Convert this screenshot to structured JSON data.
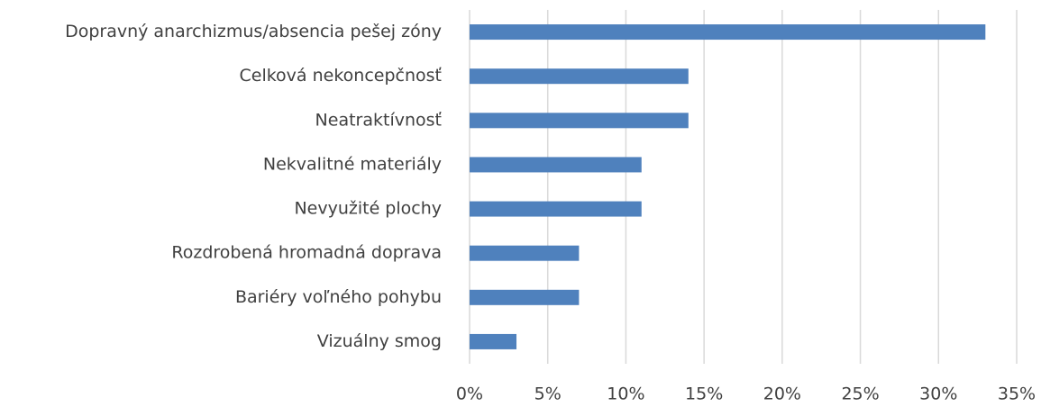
{
  "chart_data": {
    "type": "bar",
    "orientation": "horizontal",
    "categories": [
      "Dopravný anarchizmus/absencia pešej zóny",
      "Celková nekoncepčnosť",
      "Neatraktívnosť",
      "Nekvalitné materiály",
      "Nevyužité plochy",
      "Rozdrobená hromadná doprava",
      "Bariéry voľného pohybu",
      "Vizuálny smog"
    ],
    "values": [
      33,
      14,
      14,
      11,
      11,
      7,
      7,
      3
    ],
    "color": "#4f81bd",
    "xlim": [
      0,
      35
    ],
    "xticks": [
      {
        "value": 0,
        "label": "0%"
      },
      {
        "value": 5,
        "label": "5%"
      },
      {
        "value": 10,
        "label": "10%"
      },
      {
        "value": 15,
        "label": "15%"
      },
      {
        "value": 20,
        "label": "20%"
      },
      {
        "value": 25,
        "label": "25%"
      },
      {
        "value": 30,
        "label": "30%"
      },
      {
        "value": 35,
        "label": "35%"
      }
    ],
    "grid": true
  }
}
